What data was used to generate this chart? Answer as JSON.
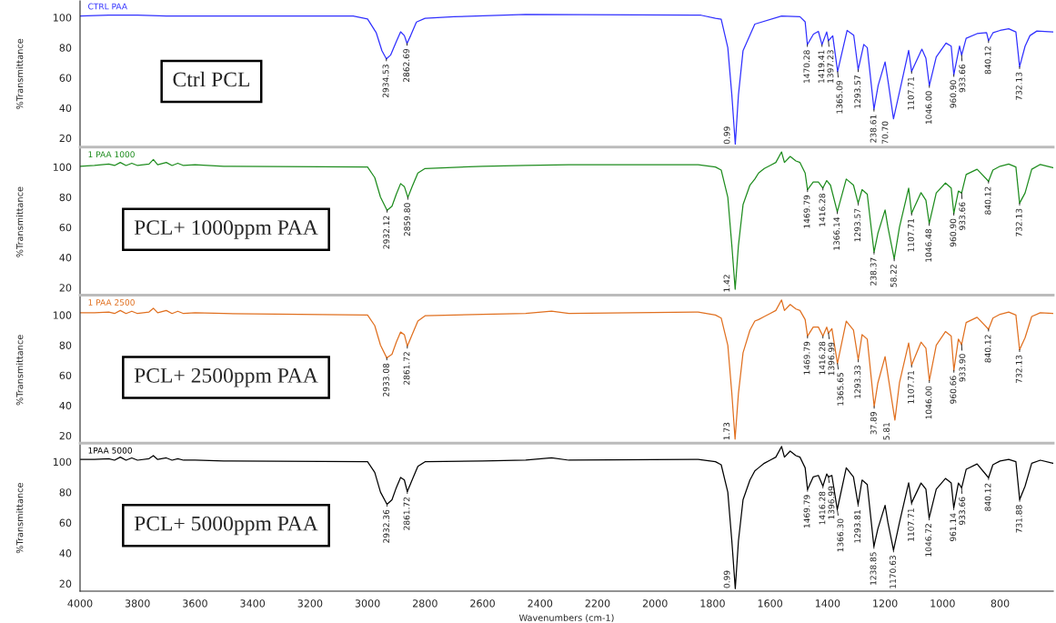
{
  "chart_data": [
    {
      "type": "line",
      "ylabel": "%Transmittance",
      "xlim": [
        4000,
        615
      ],
      "ylim": [
        14,
        111
      ],
      "yticks": [
        20,
        40,
        60,
        80,
        100
      ],
      "tick_labels": "y",
      "legend": false,
      "series": [
        {
          "name": "CTRL PAA",
          "color": "#3030ff",
          "x": [
            4000,
            3900,
            3800,
            3700,
            3600,
            3400,
            3200,
            3050,
            3000,
            2970,
            2950,
            2934.53,
            2920,
            2900,
            2885,
            2872,
            2862.69,
            2850,
            2830,
            2800,
            2700,
            2450,
            1840,
            1790,
            1770,
            1747,
            1733,
            1720.99,
            1710,
            1694,
            1653,
            1560,
            1496,
            1478,
            1470.28,
            1449,
            1432,
            1419.41,
            1403,
            1397.23,
            1382,
            1365.09,
            1332,
            1309,
            1293.57,
            1274,
            1262,
            1238.61,
            1224,
            1200,
            1189,
            1170.7,
            1140,
            1118,
            1107.71,
            1072,
            1058,
            1046,
            1022,
            988,
            970,
            960.9,
            941,
            933.66,
            918,
            880,
            847,
            840.12,
            824,
            800,
            770,
            745,
            732.13,
            713,
            696,
            672,
            616
          ],
          "values": [
            101,
            101.5,
            101.5,
            101,
            101,
            101,
            101,
            101,
            99,
            90,
            78,
            72.5,
            75,
            84,
            90.5,
            88,
            82.8,
            88,
            97,
            99.5,
            100.5,
            102,
            101.5,
            99.5,
            98.8,
            80,
            48.6,
            16,
            48.6,
            78,
            95.6,
            101,
            100.5,
            97.1,
            82,
            89,
            90.8,
            82,
            90.4,
            84.6,
            87.8,
            64.2,
            91.4,
            88.2,
            65.3,
            82.1,
            80,
            39.1,
            55,
            70.5,
            56.9,
            32.8,
            59,
            78.2,
            64.2,
            79,
            73,
            54.8,
            73.8,
            83,
            81,
            62.1,
            81,
            75,
            86.2,
            89.3,
            90,
            84.6,
            90,
            91.4,
            92.5,
            90.4,
            67.3,
            81,
            88,
            91,
            90.4
          ]
        }
      ],
      "annotations": [
        "Ctrl PCL",
        {
          "text": "2934.53",
          "x": 2934.53,
          "y": 72.5
        },
        {
          "text": "2862.69",
          "x": 2862.69,
          "y": 82.8
        },
        {
          "text": "0.99",
          "x": 1720.99,
          "y": 16
        },
        {
          "text": "1470.28",
          "x": 1470.28,
          "y": 82
        },
        {
          "text": "1419.41",
          "x": 1419.41,
          "y": 82
        },
        {
          "text": "1397.23",
          "x": 1397.23,
          "y": 84.6
        },
        {
          "text": "1365.09",
          "x": 1365.09,
          "y": 64.2
        },
        {
          "text": "1293.57",
          "x": 1293.57,
          "y": 65.3
        },
        {
          "text": "238.61",
          "x": 1238.61,
          "y": 39.1
        },
        {
          "text": "70.70",
          "x": 1170.7,
          "y": 32.8
        },
        {
          "text": "1107.71",
          "x": 1107.71,
          "y": 64.2
        },
        {
          "text": "1046.00",
          "x": 1046.0,
          "y": 54.8
        },
        {
          "text": "960.90",
          "x": 960.9,
          "y": 62.1
        },
        {
          "text": "933.66",
          "x": 933.66,
          "y": 75
        },
        {
          "text": "840.12",
          "x": 840.12,
          "y": 84.6
        },
        {
          "text": "732.13",
          "x": 732.13,
          "y": 67.3
        }
      ]
    },
    {
      "type": "line",
      "ylabel": "%Transmittance",
      "xlim": [
        4000,
        615
      ],
      "ylim": [
        15,
        112
      ],
      "yticks": [
        20,
        40,
        60,
        80,
        100
      ],
      "tick_labels": "y",
      "legend": false,
      "series": [
        {
          "name": "1 PAA 1000",
          "color": "#1e8c1e",
          "x": [
            4000,
            3950,
            3900,
            3880,
            3860,
            3840,
            3820,
            3800,
            3760,
            3745,
            3730,
            3700,
            3680,
            3660,
            3640,
            3600,
            3500,
            3000,
            2975,
            2955,
            2932.12,
            2915,
            2900,
            2885,
            2872,
            2859.8,
            2845,
            2825,
            2800,
            2600,
            2450,
            2300,
            1850,
            1790,
            1770,
            1747,
            1733,
            1721.42,
            1710,
            1694,
            1670,
            1653,
            1640,
            1620,
            1600,
            1580,
            1560,
            1550,
            1530,
            1510,
            1496,
            1478,
            1469.79,
            1450,
            1432,
            1416.28,
            1403,
            1390,
            1366.14,
            1335,
            1310,
            1293.57,
            1280,
            1262,
            1238.37,
            1225,
            1200,
            1190,
            1168.22,
            1150,
            1118,
            1107.71,
            1075,
            1058,
            1046.48,
            1022,
            990,
            970,
            960.9,
            945,
            933.66,
            918,
            880,
            840.12,
            825,
            800,
            770,
            745,
            732.13,
            713,
            690,
            660,
            616
          ],
          "values": [
            100.5,
            101,
            102,
            101,
            103,
            101,
            102.5,
            101,
            102,
            105,
            101.5,
            103,
            101,
            102.5,
            101,
            101.5,
            100.5,
            100,
            93,
            80,
            71.3,
            74,
            82,
            89,
            87,
            79.8,
            87,
            96,
            99,
            100.5,
            101,
            101.5,
            101.5,
            100,
            98,
            80,
            48,
            18.9,
            48,
            75,
            88,
            92,
            96,
            99,
            101,
            103,
            110,
            103,
            107,
            104,
            103,
            96,
            84.9,
            90,
            90,
            86,
            91,
            88,
            70.3,
            92,
            88,
            76,
            85,
            82,
            43.5,
            56,
            71.5,
            60,
            39,
            60,
            86,
            69.3,
            83,
            78,
            62.5,
            82.8,
            89.4,
            86,
            69.3,
            84,
            82.8,
            95,
            98.5,
            90.6,
            98,
            100.5,
            102,
            100,
            76,
            82.8,
            98.5,
            101.7,
            99.6
          ]
        }
      ],
      "annotations": [
        "PCL+ 1000ppm PAA",
        {
          "text": "2932.12",
          "x": 2932.12,
          "y": 71.3
        },
        {
          "text": "2859.80",
          "x": 2859.8,
          "y": 79.8
        },
        {
          "text": "1.42",
          "x": 1721.42,
          "y": 18.9
        },
        {
          "text": "1469.79",
          "x": 1469.79,
          "y": 84.9
        },
        {
          "text": "1416.28",
          "x": 1416.28,
          "y": 86
        },
        {
          "text": "1366.14",
          "x": 1366.14,
          "y": 70.3
        },
        {
          "text": "1293.57",
          "x": 1293.57,
          "y": 76
        },
        {
          "text": "238.37",
          "x": 1238.37,
          "y": 43.5
        },
        {
          "text": "58.22",
          "x": 1168.22,
          "y": 39
        },
        {
          "text": "1107.71",
          "x": 1107.71,
          "y": 69.3
        },
        {
          "text": "1046.48",
          "x": 1046.48,
          "y": 62.5
        },
        {
          "text": "960.90",
          "x": 960.9,
          "y": 69.3
        },
        {
          "text": "933.66",
          "x": 933.66,
          "y": 82.8
        },
        {
          "text": "840.12",
          "x": 840.12,
          "y": 90.6
        },
        {
          "text": "732.13",
          "x": 732.13,
          "y": 76
        }
      ]
    },
    {
      "type": "line",
      "ylabel": "%Transmittance",
      "xlim": [
        4000,
        615
      ],
      "ylim": [
        15,
        112
      ],
      "yticks": [
        20,
        40,
        60,
        80,
        100
      ],
      "tick_labels": "y",
      "legend": false,
      "series": [
        {
          "name": "1 PAA 2500",
          "color": "#e07020",
          "x": [
            4000,
            3950,
            3900,
            3880,
            3860,
            3840,
            3820,
            3800,
            3760,
            3745,
            3730,
            3700,
            3680,
            3660,
            3640,
            3600,
            3500,
            3000,
            2975,
            2955,
            2933.08,
            2915,
            2900,
            2885,
            2872,
            2861.72,
            2845,
            2825,
            2800,
            2600,
            2450,
            2360,
            2300,
            1850,
            1790,
            1770,
            1747,
            1733,
            1721.73,
            1710,
            1694,
            1670,
            1653,
            1640,
            1620,
            1600,
            1580,
            1560,
            1550,
            1530,
            1510,
            1496,
            1478,
            1469.79,
            1450,
            1432,
            1416.28,
            1403,
            1396.99,
            1385,
            1365.65,
            1335,
            1310,
            1293.33,
            1280,
            1262,
            1237.89,
            1225,
            1200,
            1190,
            1165.81,
            1150,
            1118,
            1107.71,
            1075,
            1058,
            1046,
            1022,
            990,
            970,
            960.66,
            945,
            933.9,
            918,
            880,
            840.12,
            825,
            800,
            770,
            745,
            732.13,
            713,
            690,
            660,
            616
          ],
          "values": [
            101.5,
            101.5,
            102,
            101,
            103,
            101,
            102.5,
            101,
            102,
            104.5,
            101.5,
            103,
            101,
            102.5,
            101,
            101.5,
            101,
            100,
            93,
            80,
            71.5,
            74,
            82,
            88.7,
            87,
            79.3,
            87,
            96,
            99.5,
            100.5,
            101,
            102.5,
            101,
            102,
            100,
            98,
            80,
            48,
            17.7,
            48,
            75,
            90,
            96,
            97,
            99,
            101,
            103,
            110,
            103,
            107,
            104,
            103,
            97,
            86,
            92,
            92,
            86,
            92,
            88,
            91,
            67.9,
            96,
            90,
            70.2,
            87,
            84,
            39.4,
            55,
            72.4,
            60,
            30.3,
            55,
            81.5,
            66.7,
            82,
            78,
            56.5,
            80,
            89,
            86,
            63.3,
            84,
            80.4,
            95,
            98.5,
            90.6,
            98,
            100.5,
            102,
            100,
            77,
            85,
            99,
            101.5,
            101
          ]
        }
      ],
      "annotations": [
        "PCL+ 2500ppm PAA",
        {
          "text": "2933.08",
          "x": 2933.08,
          "y": 71.5
        },
        {
          "text": "2861.72",
          "x": 2861.72,
          "y": 79.3
        },
        {
          "text": "1.73",
          "x": 1721.73,
          "y": 17.7
        },
        {
          "text": "1469.79",
          "x": 1469.79,
          "y": 86
        },
        {
          "text": "1416.28",
          "x": 1416.28,
          "y": 86
        },
        {
          "text": "1396.99",
          "x": 1396.99,
          "y": 88
        },
        {
          "text": "1365.65",
          "x": 1365.65,
          "y": 67.9
        },
        {
          "text": "1293.33",
          "x": 1293.33,
          "y": 70.2
        },
        {
          "text": "37.89",
          "x": 1237.89,
          "y": 39.4
        },
        {
          "text": "5.81",
          "x": 1165.81,
          "y": 30.3
        },
        {
          "text": "1107.71",
          "x": 1107.71,
          "y": 66.7
        },
        {
          "text": "1046.00",
          "x": 1046.0,
          "y": 56.5
        },
        {
          "text": "960.66",
          "x": 960.66,
          "y": 63.3
        },
        {
          "text": "933.90",
          "x": 933.9,
          "y": 80.4
        },
        {
          "text": "840.12",
          "x": 840.12,
          "y": 90.6
        },
        {
          "text": "732.13",
          "x": 732.13,
          "y": 77
        }
      ]
    },
    {
      "type": "line",
      "xlabel": "Wavenumbers (cm-1)",
      "ylabel": "%Transmittance",
      "xlim": [
        4000,
        615
      ],
      "ylim": [
        15,
        111
      ],
      "yticks": [
        20,
        40,
        60,
        80,
        100
      ],
      "xticks": [
        4000,
        3800,
        3600,
        3400,
        3200,
        3000,
        2800,
        2600,
        2400,
        2200,
        2000,
        1800,
        1600,
        1400,
        1200,
        1000,
        800
      ],
      "legend": false,
      "series": [
        {
          "name": "1PAA 5000",
          "color": "#000000",
          "x": [
            4000,
            3950,
            3900,
            3880,
            3860,
            3840,
            3820,
            3800,
            3760,
            3745,
            3730,
            3700,
            3680,
            3660,
            3640,
            3600,
            3500,
            3000,
            2975,
            2955,
            2932.36,
            2915,
            2900,
            2885,
            2872,
            2861.72,
            2845,
            2825,
            2800,
            2600,
            2450,
            2360,
            2300,
            1850,
            1790,
            1770,
            1747,
            1733,
            1720.99,
            1710,
            1694,
            1670,
            1653,
            1640,
            1620,
            1600,
            1580,
            1560,
            1550,
            1530,
            1510,
            1496,
            1478,
            1469.79,
            1450,
            1432,
            1416.28,
            1403,
            1396.99,
            1385,
            1366.3,
            1335,
            1310,
            1293.81,
            1280,
            1262,
            1238.85,
            1225,
            1200,
            1190,
            1170.63,
            1150,
            1118,
            1107.71,
            1075,
            1058,
            1046.72,
            1022,
            990,
            970,
            961.14,
            945,
            933.66,
            918,
            880,
            840.12,
            825,
            800,
            770,
            745,
            731.88,
            713,
            690,
            660,
            616
          ],
          "values": [
            101.5,
            101.5,
            102,
            101,
            103,
            101,
            102.5,
            101,
            102,
            104,
            101.5,
            102.5,
            101,
            102,
            101,
            101,
            100.5,
            100,
            93,
            80,
            72,
            75,
            83,
            89.7,
            88,
            80.4,
            88,
            97,
            100,
            100.5,
            101,
            102.5,
            101,
            101.5,
            100,
            98,
            80,
            48,
            16.7,
            48,
            75,
            88,
            94,
            96,
            99,
            101,
            103,
            110,
            103,
            107,
            104,
            103,
            96,
            81.8,
            90,
            91,
            84,
            92,
            90,
            91,
            68.6,
            96,
            90,
            71.9,
            88,
            85,
            44.3,
            56,
            71.4,
            60,
            42,
            60,
            86.2,
            73,
            86,
            82,
            63,
            82,
            89,
            86,
            69.7,
            86,
            82.9,
            95,
            98.5,
            89.5,
            98,
            100.5,
            101.5,
            100,
            75.2,
            84,
            99,
            101,
            99
          ]
        }
      ],
      "annotations": [
        "PCL+ 5000ppm PAA",
        {
          "text": "2932.36",
          "x": 2932.36,
          "y": 72
        },
        {
          "text": "2861.72",
          "x": 2861.72,
          "y": 80.4
        },
        {
          "text": "0.99",
          "x": 1720.99,
          "y": 16.7
        },
        {
          "text": "1469.79",
          "x": 1469.79,
          "y": 81.8
        },
        {
          "text": "1416.28",
          "x": 1416.28,
          "y": 84
        },
        {
          "text": "1396.99",
          "x": 1396.99,
          "y": 90
        },
        {
          "text": "1366.30",
          "x": 1366.3,
          "y": 68.6
        },
        {
          "text": "1293.81",
          "x": 1293.81,
          "y": 71.9
        },
        {
          "text": "1238.85",
          "x": 1238.85,
          "y": 44.3
        },
        {
          "text": "1170.63",
          "x": 1170.63,
          "y": 42
        },
        {
          "text": "1107.71",
          "x": 1107.71,
          "y": 73
        },
        {
          "text": "1046.72",
          "x": 1046.72,
          "y": 63
        },
        {
          "text": "961.14",
          "x": 961.14,
          "y": 69.7
        },
        {
          "text": "933.66",
          "x": 933.66,
          "y": 82.9
        },
        {
          "text": "840.12",
          "x": 840.12,
          "y": 89.5
        },
        {
          "text": "731.88",
          "x": 731.88,
          "y": 75.2
        }
      ]
    }
  ]
}
